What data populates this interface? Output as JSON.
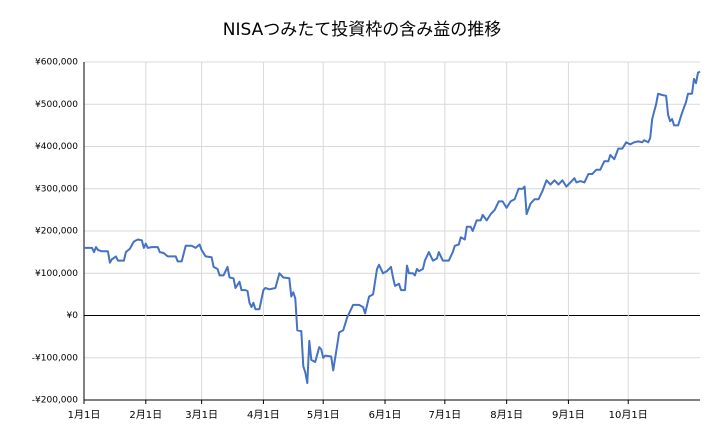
{
  "chart_data": {
    "type": "line",
    "title": "NISAつみたて投資枠の含み益の推移",
    "x": [
      0,
      2,
      4,
      5,
      6,
      7,
      9,
      12,
      13,
      14,
      16,
      17,
      20,
      21,
      23,
      25,
      27,
      29,
      30,
      31,
      32,
      34,
      37,
      38,
      40,
      42,
      44,
      46,
      47,
      49,
      51,
      54,
      56,
      58,
      59,
      61,
      64,
      65,
      67,
      68,
      70,
      72,
      73,
      75,
      76,
      78,
      79,
      81,
      82,
      83,
      84,
      85,
      86,
      88,
      90,
      91,
      93,
      96,
      98,
      100,
      103,
      104,
      105,
      106,
      107,
      109,
      110,
      111,
      112,
      113,
      114,
      116,
      118,
      119,
      120,
      121,
      124,
      125,
      127,
      128,
      130,
      131,
      132,
      135,
      138,
      140,
      141,
      143,
      145,
      147,
      148,
      150,
      152,
      154,
      155,
      156,
      158,
      159,
      161,
      162,
      163,
      165,
      166,
      167,
      168,
      170,
      171,
      173,
      175,
      177,
      178,
      180,
      183,
      185,
      186,
      188,
      189,
      191,
      192,
      194,
      195,
      197,
      199,
      200,
      202,
      204,
      206,
      208,
      210,
      212,
      214,
      216,
      218,
      220,
      221,
      222,
      224,
      226,
      228,
      230,
      232,
      234,
      236,
      238,
      240,
      242,
      244,
      246,
      247,
      249,
      251,
      253,
      255,
      257,
      259,
      261,
      263,
      264,
      266,
      268,
      270,
      272,
      274,
      276,
      278,
      280,
      281,
      283,
      284,
      285,
      287,
      288,
      290,
      292,
      293,
      294,
      295,
      296,
      298,
      300,
      302,
      303,
      305,
      306,
      307,
      308,
      309
    ],
    "values": [
      160000,
      160000,
      160000,
      150000,
      162000,
      155000,
      152000,
      152000,
      125000,
      133000,
      140000,
      130000,
      130000,
      150000,
      158000,
      175000,
      180000,
      178000,
      160000,
      170000,
      160000,
      162000,
      162000,
      150000,
      148000,
      140000,
      140000,
      140000,
      128000,
      128000,
      165000,
      165000,
      160000,
      168000,
      155000,
      140000,
      138000,
      115000,
      110000,
      95000,
      95000,
      115000,
      90000,
      88000,
      65000,
      80000,
      60000,
      60000,
      58000,
      30000,
      20000,
      30000,
      15000,
      15000,
      60000,
      65000,
      62000,
      65000,
      100000,
      90000,
      88000,
      45000,
      55000,
      40000,
      -35000,
      -37000,
      -120000,
      -135000,
      -160000,
      -60000,
      -105000,
      -110000,
      -75000,
      -80000,
      -100000,
      -95000,
      -97000,
      -130000,
      -70000,
      -40000,
      -35000,
      -20000,
      -5000,
      25000,
      25000,
      20000,
      5000,
      45000,
      50000,
      110000,
      120000,
      100000,
      105000,
      115000,
      90000,
      70000,
      75000,
      60000,
      60000,
      118000,
      100000,
      100000,
      95000,
      110000,
      105000,
      110000,
      130000,
      150000,
      130000,
      135000,
      150000,
      130000,
      130000,
      150000,
      165000,
      168000,
      185000,
      180000,
      210000,
      210000,
      200000,
      225000,
      225000,
      238000,
      225000,
      240000,
      250000,
      270000,
      270000,
      255000,
      270000,
      275000,
      300000,
      300000,
      305000,
      240000,
      265000,
      275000,
      275000,
      295000,
      320000,
      310000,
      320000,
      310000,
      320000,
      305000,
      315000,
      325000,
      315000,
      318000,
      315000,
      335000,
      335000,
      345000,
      345000,
      365000,
      365000,
      380000,
      370000,
      395000,
      395000,
      410000,
      405000,
      410000,
      412000,
      410000,
      415000,
      410000,
      420000,
      465000,
      500000,
      525000,
      522000,
      520000,
      475000,
      460000,
      465000,
      450000,
      450000,
      480000,
      505000,
      525000,
      525000,
      560000,
      550000,
      575000,
      577000
    ],
    "color": "#4472c4",
    "xlim": [
      0,
      309
    ],
    "xticks": [
      {
        "value": 0,
        "label": "1月1日"
      },
      {
        "value": 31,
        "label": "2月1日"
      },
      {
        "value": 59,
        "label": "3月1日"
      },
      {
        "value": 90,
        "label": "4月1日"
      },
      {
        "value": 120,
        "label": "5月1日"
      },
      {
        "value": 151,
        "label": "6月1日"
      },
      {
        "value": 181,
        "label": "7月1日"
      },
      {
        "value": 212,
        "label": "8月1日"
      },
      {
        "value": 243,
        "label": "9月1日"
      },
      {
        "value": 273,
        "label": "10月1日"
      }
    ],
    "ylim": [
      -200000,
      600000
    ],
    "yticks": [
      {
        "value": -200000,
        "label": "-¥200,000"
      },
      {
        "value": -100000,
        "label": "-¥100,000"
      },
      {
        "value": 0,
        "label": "¥0"
      },
      {
        "value": 100000,
        "label": "¥100,000"
      },
      {
        "value": 200000,
        "label": "¥200,000"
      },
      {
        "value": 300000,
        "label": "¥300,000"
      },
      {
        "value": 400000,
        "label": "¥400,000"
      },
      {
        "value": 500000,
        "label": "¥500,000"
      },
      {
        "value": 600000,
        "label": "¥600,000"
      }
    ],
    "grid": true
  }
}
